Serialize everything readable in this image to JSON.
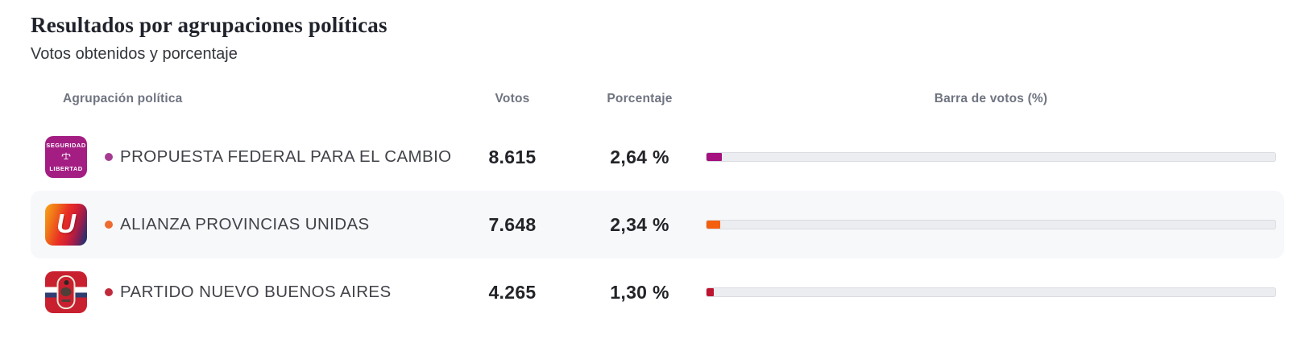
{
  "page": {
    "title": "Resultados por agrupaciones políticas",
    "subtitle": "Votos obtenidos y porcentaje"
  },
  "table": {
    "headers": {
      "party": "Agrupación política",
      "votes": "Votos",
      "percentage": "Porcentaje",
      "bar": "Barra de votos (%)"
    },
    "bar_scale_max_percent": 100,
    "rows": [
      {
        "party": "PROPUESTA FEDERAL PARA EL CAMBIO",
        "votes": "8.615",
        "percentage": "2,64 %",
        "percent_value": 2.64,
        "bar_color": "#A5117F",
        "bullet_color": "#A63C92",
        "logo": {
          "name": "seguridad-libertad-logo",
          "line1": "SEGURIDAD",
          "line2": "LIBERTAD",
          "icon": "scales-of-justice-icon",
          "bg": "#A31D83"
        }
      },
      {
        "party": "ALIANZA PROVINCIAS UNIDAS",
        "votes": "7.648",
        "percentage": "2,34 %",
        "percent_value": 2.34,
        "bar_color": "#F45F0E",
        "bullet_color": "#EE6B2F",
        "logo": {
          "name": "alianza-provincias-unidas-logo",
          "letter": "U",
          "gradient_css": "linear-gradient(108deg, #F9A51A 0%, #F07818 20%, #E93024 45%, #D01F35 62%, #8D1D52 78%, #2C2F6E 93%, #262B66 100%)"
        }
      },
      {
        "party": "PARTIDO NUEVO BUENOS AIRES",
        "votes": "4.265",
        "percentage": "1,30 %",
        "percent_value": 1.3,
        "bar_color": "#BE1430",
        "bullet_color": "#C02B3C",
        "logo": {
          "name": "partido-nuevo-buenos-aires-logo",
          "bg": "#C8202F",
          "ribbon_top": "#FFFFFF",
          "ribbon_bottom": "#2E3E72",
          "capsule_bg": "#C8202F"
        }
      }
    ]
  },
  "chart_data": {
    "type": "bar",
    "title": "Resultados por agrupaciones políticas",
    "subtitle": "Votos obtenidos y porcentaje",
    "categories": [
      "PROPUESTA FEDERAL PARA EL CAMBIO",
      "ALIANZA PROVINCIAS UNIDAS",
      "PARTIDO NUEVO BUENOS AIRES"
    ],
    "series": [
      {
        "name": "Votos",
        "values": [
          8615,
          7648,
          4265
        ]
      },
      {
        "name": "Porcentaje (%)",
        "values": [
          2.64,
          2.34,
          1.3
        ]
      }
    ],
    "bar_axis_range_percent": [
      0,
      100
    ],
    "bar_colors": [
      "#A5117F",
      "#F45F0E",
      "#BE1430"
    ],
    "orientation": "horizontal",
    "legend": "none",
    "grid": false
  }
}
